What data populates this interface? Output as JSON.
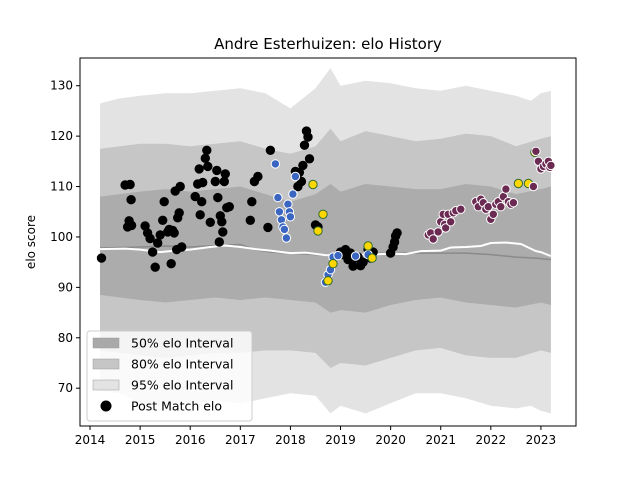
{
  "chart_data": {
    "type": "scatter",
    "title": "Andre Esterhuizen: elo History",
    "xlabel": "",
    "ylabel": "elo score",
    "xlim": [
      2013.8,
      2023.7
    ],
    "ylim": [
      62.5,
      135.5
    ],
    "xticks": [
      2014,
      2015,
      2016,
      2017,
      2018,
      2019,
      2020,
      2021,
      2022,
      2023
    ],
    "yticks": [
      70,
      80,
      90,
      100,
      110,
      120,
      130
    ],
    "grid": false,
    "legend_position": "lower-left",
    "legend": [
      {
        "label": "50% elo Interval",
        "color": "#a9a9a9"
      },
      {
        "label": "80% elo Interval",
        "color": "#c4c4c4"
      },
      {
        "label": "95% elo Interval",
        "color": "#e2e2e2"
      },
      {
        "label": "Post Match elo",
        "color": "#000000"
      }
    ],
    "mean_line": {
      "x": [
        2014.2,
        2015.0,
        2015.5,
        2016.0,
        2016.5,
        2017.0,
        2017.3,
        2017.6,
        2018.0,
        2018.5,
        2019.0,
        2019.5,
        2020.0,
        2020.5,
        2021.0,
        2021.5,
        2022.0,
        2022.5,
        2022.9,
        2023.2
      ],
      "y": [
        97.8,
        98.0,
        98.2,
        98.0,
        98.3,
        98.5,
        97.5,
        97.0,
        96.8,
        96.5,
        96.2,
        96.7,
        96.8,
        96.8,
        96.8,
        96.8,
        96.5,
        96.0,
        95.8,
        95.5
      ]
    },
    "white_line": {
      "x": [
        2014.2,
        2014.7,
        2015.0,
        2015.4,
        2015.8,
        2016.0,
        2016.4,
        2016.7,
        2017.0,
        2017.3,
        2017.6,
        2018.0,
        2018.3,
        2018.7,
        2019.0,
        2019.3,
        2019.6,
        2020.0,
        2020.3,
        2020.6,
        2021.0,
        2021.2,
        2021.5,
        2021.8,
        2022.0,
        2022.3,
        2022.6,
        2022.9,
        2023.0,
        2023.2
      ],
      "y": [
        97.6,
        97.7,
        97.5,
        97.0,
        97.4,
        97.5,
        98.0,
        98.3,
        98.0,
        97.6,
        97.3,
        96.8,
        96.9,
        96.4,
        96.3,
        96.5,
        96.5,
        96.7,
        96.6,
        97.2,
        97.3,
        97.9,
        98.0,
        98.2,
        98.8,
        98.9,
        98.6,
        97.2,
        97.0,
        96.2
      ]
    },
    "band_95": {
      "x": [
        2014.2,
        2014.6,
        2015.0,
        2015.5,
        2016.0,
        2016.5,
        2017.0,
        2017.5,
        2018.0,
        2018.5,
        2018.8,
        2019.0,
        2019.5,
        2020.0,
        2020.5,
        2021.0,
        2021.5,
        2022.0,
        2022.5,
        2022.8,
        2023.0,
        2023.2
      ],
      "upper": [
        126.5,
        127.5,
        128.0,
        128.5,
        128.5,
        129.0,
        129.5,
        128.5,
        125.5,
        129.5,
        133.5,
        130.0,
        131.0,
        130.5,
        129.5,
        129.0,
        130.0,
        129.0,
        128.0,
        127.0,
        128.5,
        129.0
      ],
      "lower": [
        69.5,
        69.0,
        67.0,
        66.5,
        67.0,
        67.5,
        67.0,
        68.0,
        69.0,
        68.5,
        65.0,
        66.5,
        65.0,
        67.0,
        69.0,
        69.0,
        68.0,
        66.5,
        66.0,
        66.5,
        65.5,
        65.0
      ]
    },
    "band_80": {
      "x": [
        2014.2,
        2014.6,
        2015.0,
        2015.5,
        2016.0,
        2016.5,
        2017.0,
        2017.5,
        2018.0,
        2018.5,
        2018.8,
        2019.0,
        2019.5,
        2020.0,
        2020.5,
        2021.0,
        2021.5,
        2022.0,
        2022.5,
        2023.0,
        2023.2
      ],
      "upper": [
        117.5,
        118.0,
        118.5,
        118.5,
        118.0,
        118.5,
        119.0,
        117.5,
        116.5,
        118.0,
        121.5,
        119.0,
        121.0,
        120.0,
        119.0,
        119.5,
        120.5,
        120.0,
        118.0,
        119.5,
        120.0
      ],
      "lower": [
        77.5,
        77.0,
        76.5,
        76.0,
        76.5,
        77.0,
        77.0,
        77.5,
        77.5,
        77.0,
        74.0,
        75.0,
        74.5,
        76.0,
        77.5,
        78.0,
        76.5,
        76.0,
        76.0,
        77.5,
        77.0
      ]
    },
    "band_50": {
      "x": [
        2014.2,
        2014.6,
        2015.0,
        2015.5,
        2016.0,
        2016.5,
        2017.0,
        2017.5,
        2018.0,
        2018.5,
        2018.8,
        2019.0,
        2019.5,
        2020.0,
        2020.5,
        2021.0,
        2021.5,
        2022.0,
        2022.5,
        2023.0,
        2023.2
      ],
      "upper": [
        108.0,
        108.5,
        109.0,
        109.5,
        109.0,
        109.5,
        110.0,
        108.5,
        107.0,
        108.5,
        110.5,
        109.0,
        110.5,
        110.0,
        109.5,
        109.5,
        110.5,
        110.0,
        108.5,
        109.5,
        110.0
      ],
      "lower": [
        88.5,
        88.0,
        87.5,
        87.0,
        87.5,
        88.0,
        87.5,
        88.0,
        87.5,
        87.0,
        85.0,
        85.5,
        85.0,
        86.5,
        87.5,
        88.0,
        87.0,
        86.5,
        86.0,
        87.0,
        86.5
      ]
    },
    "series": [
      {
        "color": "#000000",
        "points": [
          [
            2014.23,
            95.8
          ],
          [
            2014.7,
            110.3
          ],
          [
            2014.75,
            102.0
          ],
          [
            2014.78,
            103.2
          ],
          [
            2014.8,
            110.4
          ],
          [
            2014.82,
            107.4
          ],
          [
            2014.83,
            102.3
          ],
          [
            2015.1,
            102.2
          ],
          [
            2015.15,
            100.8
          ],
          [
            2015.2,
            99.7
          ],
          [
            2015.25,
            97.0
          ],
          [
            2015.3,
            94.0
          ],
          [
            2015.35,
            98.8
          ],
          [
            2015.4,
            100.4
          ],
          [
            2015.45,
            103.3
          ],
          [
            2015.48,
            107.0
          ],
          [
            2015.55,
            101.0
          ],
          [
            2015.58,
            101.5
          ],
          [
            2015.62,
            94.7
          ],
          [
            2015.65,
            101.3
          ],
          [
            2015.68,
            100.8
          ],
          [
            2015.7,
            109.1
          ],
          [
            2015.73,
            97.5
          ],
          [
            2015.75,
            103.8
          ],
          [
            2015.78,
            104.8
          ],
          [
            2015.8,
            110.0
          ],
          [
            2015.83,
            98.0
          ],
          [
            2016.1,
            108.0
          ],
          [
            2016.15,
            110.5
          ],
          [
            2016.18,
            113.5
          ],
          [
            2016.2,
            104.4
          ],
          [
            2016.23,
            107.0
          ],
          [
            2016.25,
            110.8
          ],
          [
            2016.3,
            115.6
          ],
          [
            2016.33,
            117.2
          ],
          [
            2016.35,
            114.0
          ],
          [
            2016.4,
            102.9
          ],
          [
            2016.5,
            111.0
          ],
          [
            2016.53,
            113.2
          ],
          [
            2016.55,
            107.8
          ],
          [
            2016.58,
            99.0
          ],
          [
            2016.6,
            104.2
          ],
          [
            2016.63,
            103.0
          ],
          [
            2016.65,
            101.0
          ],
          [
            2016.68,
            111.0
          ],
          [
            2016.7,
            112.5
          ],
          [
            2016.73,
            105.8
          ],
          [
            2016.78,
            106.0
          ],
          [
            2017.2,
            103.3
          ],
          [
            2017.23,
            107.0
          ],
          [
            2017.28,
            111.0
          ],
          [
            2017.35,
            112.0
          ],
          [
            2017.55,
            101.9
          ],
          [
            2017.6,
            117.2
          ],
          [
            2018.1,
            113.0
          ],
          [
            2018.15,
            110.0
          ],
          [
            2018.18,
            112.8
          ],
          [
            2018.22,
            111.0
          ],
          [
            2018.25,
            114.2
          ],
          [
            2018.28,
            118.2
          ],
          [
            2018.32,
            121.0
          ],
          [
            2018.35,
            119.8
          ],
          [
            2018.38,
            115.5
          ],
          [
            2018.5,
            102.4
          ],
          [
            2018.55,
            102.0
          ],
          [
            2019.0,
            97.0
          ],
          [
            2019.05,
            96.5
          ],
          [
            2019.1,
            97.5
          ],
          [
            2019.15,
            95.5
          ],
          [
            2019.2,
            96.8
          ],
          [
            2019.25,
            94.2
          ],
          [
            2019.3,
            95.8
          ],
          [
            2019.35,
            96.0
          ],
          [
            2019.4,
            94.3
          ],
          [
            2019.45,
            95.0
          ],
          [
            2019.55,
            97.5
          ],
          [
            2019.6,
            95.8
          ],
          [
            2019.65,
            97.0
          ],
          [
            2020.0,
            96.8
          ],
          [
            2020.05,
            98.0
          ],
          [
            2020.08,
            99.0
          ],
          [
            2020.1,
            100.2
          ],
          [
            2020.13,
            100.8
          ]
        ]
      },
      {
        "color": "#3a66c2",
        "points": [
          [
            2017.7,
            114.5
          ],
          [
            2017.75,
            107.8
          ],
          [
            2017.78,
            105.0
          ],
          [
            2017.82,
            103.4
          ],
          [
            2017.85,
            102.0
          ],
          [
            2017.88,
            101.5
          ],
          [
            2017.92,
            99.8
          ],
          [
            2017.95,
            106.5
          ],
          [
            2017.98,
            105.0
          ],
          [
            2018.0,
            104.0
          ],
          [
            2018.05,
            108.5
          ],
          [
            2018.1,
            112.0
          ],
          [
            2018.7,
            91.0
          ],
          [
            2018.75,
            92.5
          ],
          [
            2018.8,
            93.5
          ],
          [
            2018.85,
            96.0
          ],
          [
            2018.95,
            96.3
          ],
          [
            2019.3,
            96.2
          ],
          [
            2019.55,
            96.5
          ]
        ]
      },
      {
        "color": "#ffd700",
        "points": [
          [
            2018.45,
            110.4
          ],
          [
            2018.55,
            101.2
          ],
          [
            2018.65,
            104.5
          ],
          [
            2018.75,
            91.3
          ],
          [
            2018.85,
            94.7
          ],
          [
            2019.55,
            98.2
          ],
          [
            2019.63,
            95.8
          ],
          [
            2022.55,
            110.6
          ],
          [
            2022.75,
            110.6
          ],
          [
            2022.88,
            116.8
          ]
        ]
      },
      {
        "color": "#6b2a52",
        "points": [
          [
            2020.75,
            100.4
          ],
          [
            2020.8,
            100.8
          ],
          [
            2020.85,
            99.6
          ],
          [
            2020.95,
            101.0
          ],
          [
            2021.0,
            103.0
          ],
          [
            2021.05,
            104.5
          ],
          [
            2021.08,
            102.5
          ],
          [
            2021.1,
            101.8
          ],
          [
            2021.15,
            104.5
          ],
          [
            2021.2,
            103.0
          ],
          [
            2021.25,
            104.8
          ],
          [
            2021.3,
            105.2
          ],
          [
            2021.4,
            105.5
          ],
          [
            2021.7,
            107.0
          ],
          [
            2021.75,
            106.0
          ],
          [
            2021.8,
            107.5
          ],
          [
            2021.85,
            106.8
          ],
          [
            2021.9,
            105.5
          ],
          [
            2021.95,
            106.0
          ],
          [
            2022.0,
            103.5
          ],
          [
            2022.05,
            104.5
          ],
          [
            2022.1,
            106.5
          ],
          [
            2022.15,
            107.0
          ],
          [
            2022.2,
            106.0
          ],
          [
            2022.25,
            108.0
          ],
          [
            2022.3,
            109.5
          ],
          [
            2022.35,
            107.0
          ],
          [
            2022.4,
            106.5
          ],
          [
            2022.45,
            106.8
          ],
          [
            2022.85,
            110.0
          ],
          [
            2022.9,
            117.0
          ],
          [
            2022.95,
            115.0
          ],
          [
            2023.0,
            113.5
          ],
          [
            2023.05,
            114.0
          ],
          [
            2023.1,
            114.5
          ],
          [
            2023.15,
            115.0
          ],
          [
            2023.18,
            113.8
          ],
          [
            2023.2,
            114.2
          ]
        ]
      }
    ]
  }
}
